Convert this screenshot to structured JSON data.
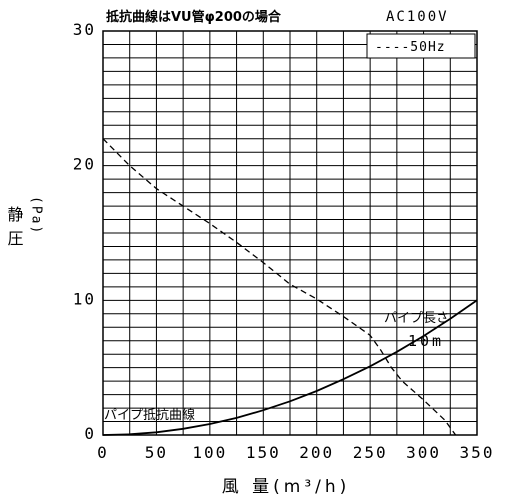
{
  "chart_data": {
    "type": "line",
    "title": "抵抗曲線はVU管φ200の場合",
    "voltage": "AC100V",
    "legend": {
      "label": "----50Hz",
      "placement": "top-right"
    },
    "xlabel": "風 量(m³/h)",
    "ylabel_main": "静圧",
    "ylabel_unit": "(Pa)",
    "xlim": [
      0,
      350
    ],
    "ylim": [
      0,
      30
    ],
    "x_ticks": [
      "0",
      "50",
      "100",
      "150",
      "200",
      "250",
      "300",
      "350"
    ],
    "y_ticks": [
      "0",
      "10",
      "20",
      "30"
    ],
    "grid": true,
    "annotations": {
      "pipe_length_label": "パイプ長さ",
      "pipe_length_value": "10m",
      "resistance_label": "パイプ抵抗曲線"
    },
    "series": [
      {
        "name": "50Hz",
        "style": "dashed",
        "x": [
          0,
          25,
          50,
          75,
          100,
          125,
          150,
          175,
          200,
          225,
          250,
          260,
          270,
          280,
          300,
          320,
          330
        ],
        "y": [
          22,
          20,
          18.3,
          17,
          15.7,
          14.3,
          12.8,
          11.2,
          10.1,
          8.8,
          7.4,
          6.3,
          5,
          4,
          2.6,
          1.1,
          0
        ]
      },
      {
        "name": "パイプ抵抗曲線",
        "style": "solid",
        "x": [
          0,
          25,
          50,
          75,
          100,
          125,
          150,
          175,
          200,
          225,
          250,
          275,
          300,
          325,
          350
        ],
        "y": [
          0,
          0.05,
          0.2,
          0.46,
          0.82,
          1.27,
          1.84,
          2.5,
          3.27,
          4.14,
          5.1,
          6.18,
          7.35,
          8.63,
          10
        ]
      }
    ]
  }
}
